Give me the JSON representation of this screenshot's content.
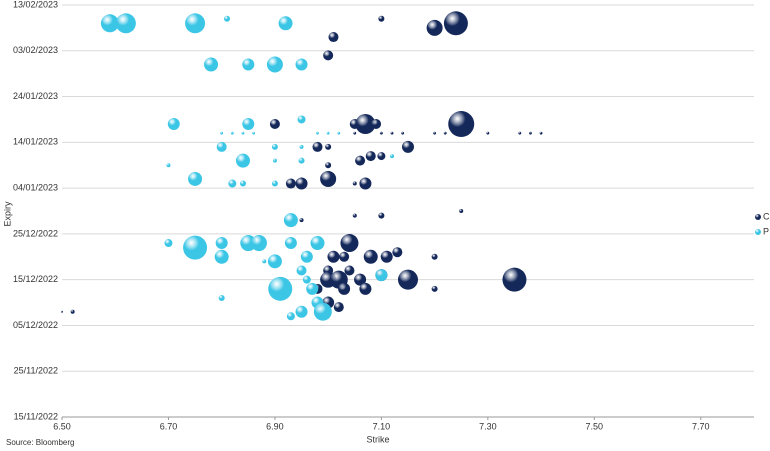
{
  "chart_data": {
    "type": "bubble",
    "x_label": "Strike",
    "y_label": "Expiry",
    "source": "Source: Bloomberg",
    "xlim": [
      6.5,
      7.8
    ],
    "xticks": [
      {
        "value": 6.5,
        "label": "6.50"
      },
      {
        "value": 6.7,
        "label": "6.70"
      },
      {
        "value": 6.9,
        "label": "6.90"
      },
      {
        "value": 7.1,
        "label": "7.10"
      },
      {
        "value": 7.3,
        "label": "7.30"
      },
      {
        "value": 7.5,
        "label": "7.50"
      },
      {
        "value": 7.7,
        "label": "7.70"
      }
    ],
    "ylim": [
      "2022-11-15",
      "2023-02-13"
    ],
    "yticks": [
      {
        "value": "2022-11-15",
        "label": "15/11/2022"
      },
      {
        "value": "2022-11-25",
        "label": "25/11/2022"
      },
      {
        "value": "2022-12-05",
        "label": "05/12/2022"
      },
      {
        "value": "2022-12-15",
        "label": "15/12/2022"
      },
      {
        "value": "2022-12-25",
        "label": "25/12/2022"
      },
      {
        "value": "2023-01-04",
        "label": "04/01/2023"
      },
      {
        "value": "2023-01-14",
        "label": "14/01/2023"
      },
      {
        "value": "2023-01-24",
        "label": "24/01/2023"
      },
      {
        "value": "2023-02-03",
        "label": "03/02/2023"
      },
      {
        "value": "2023-02-13",
        "label": "13/02/2023"
      }
    ],
    "grid": true,
    "legend": "right",
    "series": [
      {
        "name": "C",
        "color": "#14285a",
        "x": [
          7.1,
          7.2,
          7.24,
          7.01,
          7.0,
          6.9,
          7.05,
          7.07,
          7.09,
          7.25,
          7.15,
          6.98,
          7.0,
          7.08,
          7.1,
          7.06,
          7.0,
          7.0,
          6.95,
          6.93,
          7.05,
          7.07,
          6.95,
          7.05,
          7.1,
          7.25,
          7.04,
          7.03,
          7.08,
          7.11,
          7.13,
          7.2,
          7.01,
          7.0,
          7.04,
          7.0,
          7.02,
          7.06,
          7.1,
          7.15,
          7.35,
          7.03,
          7.07,
          6.98,
          7.0,
          7.02,
          7.2,
          6.5,
          6.52,
          7.05,
          7.1,
          7.12,
          7.14,
          7.2,
          7.22,
          7.3,
          7.36,
          7.38,
          7.4
        ],
        "values": [
          "2023-02-10",
          "2023-02-08",
          "2023-02-09",
          "2023-02-06",
          "2023-02-02",
          "2023-01-18",
          "2023-01-18",
          "2023-01-18",
          "2023-01-18",
          "2023-01-18",
          "2023-01-13",
          "2023-01-13",
          "2023-01-13",
          "2023-01-11",
          "2023-01-11",
          "2023-01-10",
          "2023-01-09",
          "2023-01-06",
          "2023-01-05",
          "2023-01-05",
          "2023-01-05",
          "2023-01-05",
          "2022-12-28",
          "2022-12-29",
          "2022-12-29",
          "2022-12-30",
          "2022-12-23",
          "2022-12-20",
          "2022-12-20",
          "2022-12-20",
          "2022-12-21",
          "2022-12-20",
          "2022-12-20",
          "2022-12-17",
          "2022-12-17",
          "2022-12-15",
          "2022-12-15",
          "2022-12-15",
          "2022-12-16",
          "2022-12-15",
          "2022-12-15",
          "2022-12-13",
          "2022-12-13",
          "2022-12-13",
          "2022-12-10",
          "2022-12-09",
          "2022-12-13",
          "2022-12-08",
          "2022-12-08",
          "2023-01-16",
          "2023-01-16",
          "2023-01-16",
          "2023-01-16",
          "2023-01-16",
          "2023-01-16",
          "2023-01-16",
          "2023-01-16",
          "2023-01-16",
          "2023-01-16"
        ],
        "sizes": [
          9,
          64,
          144,
          25,
          25,
          25,
          25,
          100,
          25,
          169,
          36,
          25,
          9,
          25,
          16,
          25,
          9,
          64,
          36,
          25,
          4,
          36,
          4,
          4,
          9,
          4,
          81,
          25,
          49,
          36,
          25,
          9,
          36,
          25,
          25,
          64,
          81,
          36,
          36,
          100,
          144,
          36,
          36,
          25,
          36,
          25,
          9,
          1,
          4,
          2,
          2,
          2,
          2,
          2,
          2,
          2,
          2,
          2,
          2
        ]
      },
      {
        "name": "P",
        "color": "#3cc6e6",
        "x": [
          6.59,
          6.62,
          6.75,
          6.81,
          6.92,
          6.78,
          6.85,
          6.9,
          6.95,
          6.71,
          6.85,
          6.95,
          6.8,
          6.9,
          6.95,
          6.7,
          6.84,
          6.9,
          6.95,
          7.12,
          6.75,
          6.82,
          6.84,
          6.9,
          6.93,
          6.7,
          6.75,
          6.8,
          6.85,
          6.87,
          6.93,
          6.98,
          6.8,
          6.9,
          6.96,
          6.88,
          6.95,
          7.1,
          6.96,
          6.97,
          6.91,
          6.98,
          6.8,
          6.95,
          6.99,
          6.93,
          6.8,
          6.82,
          6.84,
          6.86,
          6.98,
          7.0,
          7.02
        ],
        "values": [
          "2023-02-09",
          "2023-02-09",
          "2023-02-09",
          "2023-02-10",
          "2023-02-09",
          "2023-01-31",
          "2023-01-31",
          "2023-01-31",
          "2023-01-31",
          "2023-01-18",
          "2023-01-18",
          "2023-01-19",
          "2023-01-13",
          "2023-01-13",
          "2023-01-13",
          "2023-01-09",
          "2023-01-10",
          "2023-01-10",
          "2023-01-10",
          "2023-01-11",
          "2023-01-06",
          "2023-01-05",
          "2023-01-05",
          "2023-01-05",
          "2022-12-28",
          "2022-12-23",
          "2022-12-22",
          "2022-12-23",
          "2022-12-23",
          "2022-12-23",
          "2022-12-23",
          "2022-12-23",
          "2022-12-20",
          "2022-12-19",
          "2022-12-20",
          "2022-12-19",
          "2022-12-17",
          "2022-12-16",
          "2022-12-15",
          "2022-12-13",
          "2022-12-13",
          "2022-12-10",
          "2022-12-11",
          "2022-12-08",
          "2022-12-08",
          "2022-12-07",
          "2023-01-16",
          "2023-01-16",
          "2023-01-16",
          "2023-01-16",
          "2023-01-16",
          "2023-01-16",
          "2023-01-16"
        ],
        "sizes": [
          81,
          100,
          100,
          9,
          49,
          49,
          36,
          64,
          36,
          36,
          36,
          16,
          25,
          9,
          4,
          4,
          49,
          4,
          9,
          4,
          49,
          16,
          9,
          9,
          49,
          16,
          144,
          36,
          64,
          64,
          36,
          49,
          49,
          49,
          36,
          4,
          25,
          36,
          16,
          36,
          144,
          36,
          9,
          36,
          81,
          16,
          2,
          2,
          2,
          2,
          2,
          2,
          2
        ]
      }
    ]
  }
}
